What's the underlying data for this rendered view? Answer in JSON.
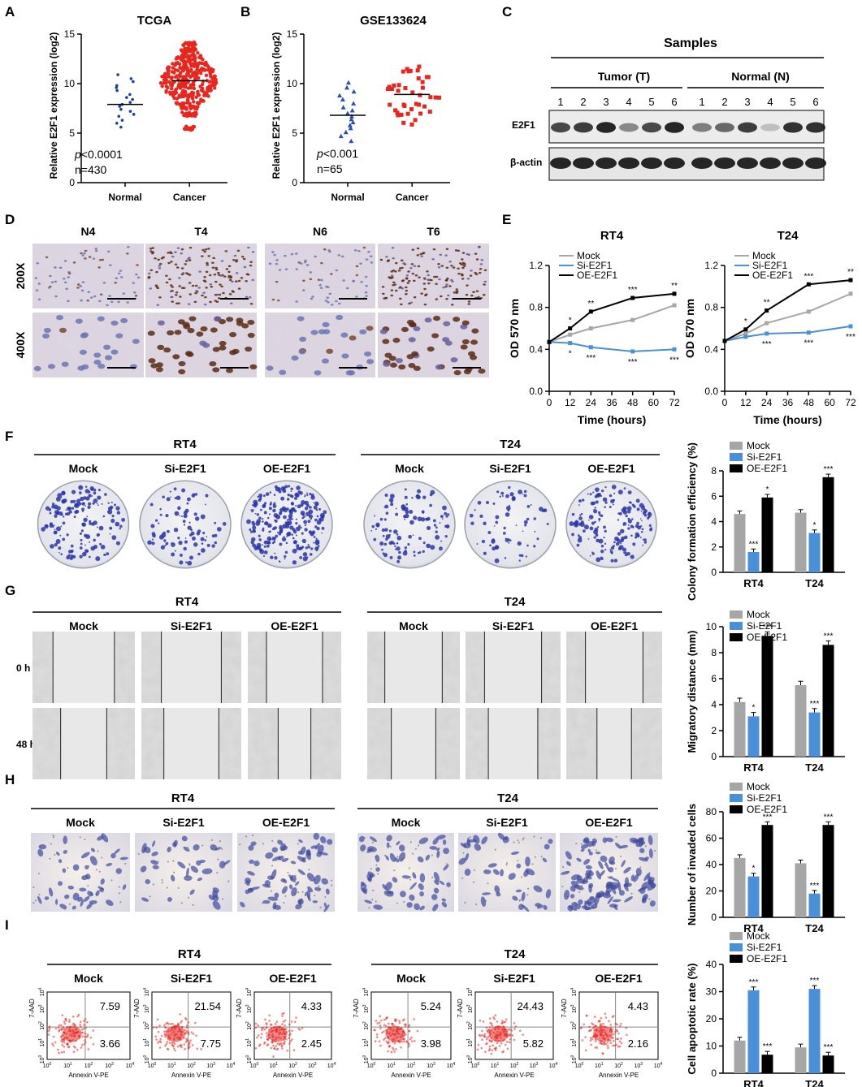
{
  "panel_letters": [
    "A",
    "B",
    "C",
    "D",
    "E",
    "F",
    "G",
    "H",
    "I"
  ],
  "colors": {
    "mock": "#a6a6a6",
    "si": "#4a90d9",
    "oe": "#000000",
    "normal_dots_a": "#1f3f9e",
    "cancer_dots": "#e8261e",
    "normal_dots_b": "#2b4fb3",
    "stain_blue": "#2b35a8",
    "flow_red": "#e5251f"
  },
  "panel_a": {
    "title": "TCGA",
    "ylabel": "Relative E2F1 expression (log2)",
    "categories": [
      "Normal",
      "Cancer"
    ],
    "yticks": [
      "0",
      "5",
      "10",
      "15"
    ],
    "pvalue_p": "p",
    "pvalue_rest": "<0.0001",
    "n_label": "n=430"
  },
  "panel_b": {
    "title": "GSE133624",
    "ylabel": "Relative E2F1 expression (log2)",
    "categories": [
      "Normal",
      "Cancer"
    ],
    "yticks": [
      "0",
      "5",
      "10",
      "15"
    ],
    "pvalue_p": "p",
    "pvalue_rest": "<0.001",
    "n_label": "n=65"
  },
  "panel_c": {
    "title": "Samples",
    "group_tumor": "Tumor (T)",
    "group_normal": "Normal (N)",
    "lanes": [
      "1",
      "2",
      "3",
      "4",
      "5",
      "6",
      "1",
      "2",
      "3",
      "4",
      "5",
      "6"
    ],
    "row_e2f1": "E2F1",
    "row_actin": "β-actin"
  },
  "panel_d": {
    "cols": [
      "N4",
      "T4",
      "N6",
      "T6"
    ],
    "rows": [
      "200X",
      "400X"
    ]
  },
  "panel_e": {
    "yticks": [
      "0.0",
      "0.4",
      "0.8",
      "1.2"
    ],
    "xticks": [
      "0",
      "12",
      "24",
      "36",
      "48",
      "60",
      "72"
    ],
    "ylabel": "OD 570 nm",
    "xlabel": "Time (hours)"
  },
  "legend": {
    "mock": "Mock",
    "si": "Si-E2F1",
    "oe": "OE-E2F1"
  },
  "panel_f": {
    "groups": [
      "RT4",
      "T24"
    ],
    "conditions": [
      "Mock",
      "Si-E2F1",
      "OE-E2F1"
    ]
  },
  "panel_g": {
    "groups": [
      "RT4",
      "T24"
    ],
    "conditions": [
      "Mock",
      "Si-E2F1",
      "OE-E2F1"
    ],
    "times": [
      "0 h",
      "48 h"
    ]
  },
  "panel_h": {
    "groups": [
      "RT4",
      "T24"
    ],
    "conditions": [
      "Mock",
      "Si-E2F1",
      "OE-E2F1"
    ]
  },
  "panel_i": {
    "groups": [
      "RT4",
      "T24"
    ],
    "conditions": [
      "Mock",
      "Si-E2F1",
      "OE-E2F1"
    ],
    "xaxis": "Annexin V-PE",
    "yaxis": "7-AAD",
    "ticks": [
      "10",
      "10",
      "10",
      "10",
      "10"
    ],
    "tick_exps": [
      "0",
      "1",
      "2",
      "3",
      "4"
    ],
    "quadrants": [
      [
        "7.59",
        "3.66"
      ],
      [
        "21.54",
        "7.75"
      ],
      [
        "4.33",
        "2.45"
      ],
      [
        "5.24",
        "3.98"
      ],
      [
        "24.43",
        "5.82"
      ],
      [
        "4.43",
        "2.16"
      ]
    ]
  },
  "chart_data": [
    {
      "type": "scatter",
      "title": "TCGA",
      "ylabel": "Relative E2F1 expression (log2)",
      "categories": [
        "Normal",
        "Cancer"
      ],
      "ylim": [
        0,
        15
      ],
      "series": [
        {
          "values": [
            10.9,
            10.5,
            10.2,
            9.8,
            9.6,
            9.3,
            8.9,
            8.6,
            8.4,
            8.1,
            7.9,
            7.7,
            7.4,
            7.2,
            6.9,
            6.7,
            6.3,
            6.0,
            5.6
          ]
        },
        {
          "values": [
            14.0,
            13.4,
            12.9,
            12.5,
            12.1,
            11.8,
            11.5,
            11.2,
            10.9,
            10.6,
            10.3,
            10.0,
            9.7,
            9.4,
            9.0,
            8.6,
            8.1,
            7.6,
            6.9,
            5.5
          ]
        }
      ],
      "medians": [
        7.9,
        10.3
      ]
    },
    {
      "type": "scatter",
      "title": "GSE133624",
      "ylabel": "Relative E2F1 expression (log2)",
      "categories": [
        "Normal",
        "Cancer"
      ],
      "ylim": [
        0,
        15
      ],
      "series": [
        {
          "values": [
            10.1,
            9.6,
            9.2,
            8.8,
            8.4,
            8.0,
            7.6,
            7.3,
            7.0,
            6.7,
            6.4,
            6.1,
            5.8,
            5.5,
            5.1,
            4.7,
            4.2
          ]
        },
        {
          "values": [
            11.9,
            11.3,
            10.8,
            10.4,
            10.0,
            9.6,
            9.3,
            9.0,
            8.7,
            8.4,
            8.1,
            7.8,
            7.4,
            7.0,
            6.5,
            6.0
          ]
        }
      ],
      "medians": [
        6.8,
        8.9
      ]
    },
    {
      "type": "line",
      "title": "RT4",
      "xlabel": "Time (hours)",
      "ylabel": "OD 570 nm",
      "x": [
        0,
        12,
        24,
        48,
        72
      ],
      "ylim": [
        0,
        1.2
      ],
      "xlim": [
        0,
        72
      ],
      "series": [
        {
          "name": "Mock",
          "values": [
            0.47,
            0.54,
            0.6,
            0.68,
            0.82
          ]
        },
        {
          "name": "Si-E2F1",
          "values": [
            0.47,
            0.46,
            0.42,
            0.38,
            0.4
          ]
        },
        {
          "name": "OE-E2F1",
          "values": [
            0.47,
            0.6,
            0.76,
            0.89,
            0.93
          ]
        }
      ],
      "annotations": {
        "OE-E2F1": [
          "",
          "*",
          "**",
          "***",
          "**"
        ],
        "Si-E2F1": [
          "",
          "*",
          "***",
          "***",
          "***"
        ]
      }
    },
    {
      "type": "line",
      "title": "T24",
      "xlabel": "Time (hours)",
      "ylabel": "OD 570 nm",
      "x": [
        0,
        12,
        24,
        48,
        72
      ],
      "ylim": [
        0,
        1.2
      ],
      "xlim": [
        0,
        72
      ],
      "series": [
        {
          "name": "Mock",
          "values": [
            0.48,
            0.55,
            0.65,
            0.76,
            0.93
          ]
        },
        {
          "name": "Si-E2F1",
          "values": [
            0.48,
            0.52,
            0.55,
            0.56,
            0.62
          ]
        },
        {
          "name": "OE-E2F1",
          "values": [
            0.48,
            0.59,
            0.77,
            1.02,
            1.06
          ]
        }
      ],
      "annotations": {
        "OE-E2F1": [
          "",
          "*",
          "**",
          "***",
          "**"
        ],
        "Si-E2F1": [
          "",
          "",
          "***",
          "***",
          "***"
        ]
      }
    },
    {
      "type": "bar",
      "ylabel": "Colony formation efficiency (%)",
      "categories": [
        "RT4",
        "T24"
      ],
      "yticks": [
        "0",
        "2",
        "4",
        "6",
        "8"
      ],
      "ylim": [
        0,
        8
      ],
      "series": [
        {
          "name": "Mock",
          "values": [
            4.6,
            4.7
          ]
        },
        {
          "name": "Si-E2F1",
          "values": [
            1.6,
            3.1
          ]
        },
        {
          "name": "OE-E2F1",
          "values": [
            5.9,
            7.5
          ]
        }
      ],
      "stars": {
        "Si-E2F1": [
          "***",
          "*"
        ],
        "OE-E2F1": [
          "*",
          "***"
        ]
      }
    },
    {
      "type": "bar",
      "ylabel": "Migratory distance (mm)",
      "categories": [
        "RT4",
        "T24"
      ],
      "yticks": [
        "0",
        "2",
        "4",
        "6",
        "8",
        "10"
      ],
      "ylim": [
        0,
        10
      ],
      "series": [
        {
          "name": "Mock",
          "values": [
            4.2,
            5.5
          ]
        },
        {
          "name": "Si-E2F1",
          "values": [
            3.1,
            3.4
          ]
        },
        {
          "name": "OE-E2F1",
          "values": [
            9.3,
            8.6
          ]
        }
      ],
      "stars": {
        "Si-E2F1": [
          "*",
          "***"
        ],
        "OE-E2F1": [
          "***",
          "***"
        ]
      }
    },
    {
      "type": "bar",
      "ylabel": "Number of invaded cells",
      "categories": [
        "RT4",
        "T24"
      ],
      "yticks": [
        "0",
        "20",
        "40",
        "60",
        "80"
      ],
      "ylim": [
        0,
        80
      ],
      "series": [
        {
          "name": "Mock",
          "values": [
            45,
            41
          ]
        },
        {
          "name": "Si-E2F1",
          "values": [
            31,
            18
          ]
        },
        {
          "name": "OE-E2F1",
          "values": [
            70,
            70
          ]
        }
      ],
      "stars": {
        "Si-E2F1": [
          "*",
          "***"
        ],
        "OE-E2F1": [
          "***",
          "***"
        ]
      }
    },
    {
      "type": "bar",
      "ylabel": "Cell apoptotic rate (%)",
      "categories": [
        "RT4",
        "T24"
      ],
      "yticks": [
        "0",
        "10",
        "20",
        "30",
        "40"
      ],
      "ylim": [
        0,
        40
      ],
      "series": [
        {
          "name": "Mock",
          "values": [
            12,
            9.5
          ]
        },
        {
          "name": "Si-E2F1",
          "values": [
            30.5,
            31
          ]
        },
        {
          "name": "OE-E2F1",
          "values": [
            6.8,
            6.5
          ]
        }
      ],
      "stars": {
        "Si-E2F1": [
          "***",
          "***"
        ],
        "OE-E2F1": [
          "***",
          "***"
        ]
      }
    }
  ]
}
